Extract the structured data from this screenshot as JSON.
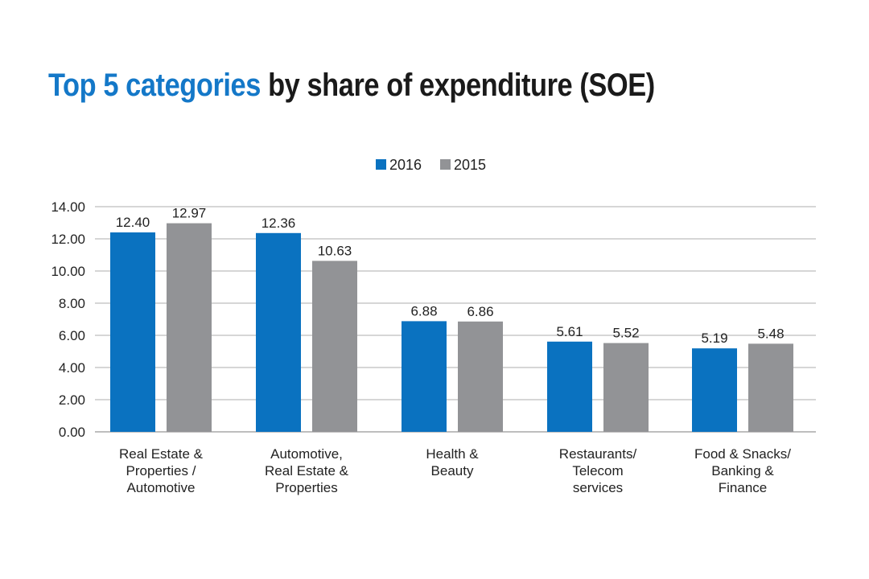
{
  "title_highlight": "Top 5 categories",
  "title_rest": " by share of expenditure (SOE)",
  "colors": {
    "2016": "#0a72c0",
    "2015": "#929396",
    "grid": "#c8c8c8",
    "title_highlight": "#1478c8"
  },
  "chart_data": {
    "type": "bar",
    "categories": [
      [
        "Real Estate &",
        "Properties /",
        "Automotive"
      ],
      [
        "Automotive,",
        "Real Estate &",
        "Properties"
      ],
      [
        "Health &",
        "Beauty"
      ],
      [
        "Restaurants/",
        "Telecom",
        "services"
      ],
      [
        "Food & Snacks/",
        "Banking &",
        "Finance"
      ]
    ],
    "series": [
      {
        "name": "2016",
        "values": [
          12.4,
          12.36,
          6.88,
          5.61,
          5.19
        ],
        "labels": [
          "12.40",
          "12.36",
          "6.88",
          "5.61",
          "5.19"
        ]
      },
      {
        "name": "2015",
        "values": [
          12.97,
          10.63,
          6.86,
          5.52,
          5.48
        ],
        "labels": [
          "12.97",
          "10.63",
          "6.86",
          "5.52",
          "5.48"
        ]
      }
    ],
    "yticks": [
      "0.00",
      "2.00",
      "4.00",
      "6.00",
      "8.00",
      "10.00",
      "12.00",
      "14.00"
    ],
    "ylim": [
      0,
      14
    ],
    "grid": true,
    "legend": "top-center"
  }
}
